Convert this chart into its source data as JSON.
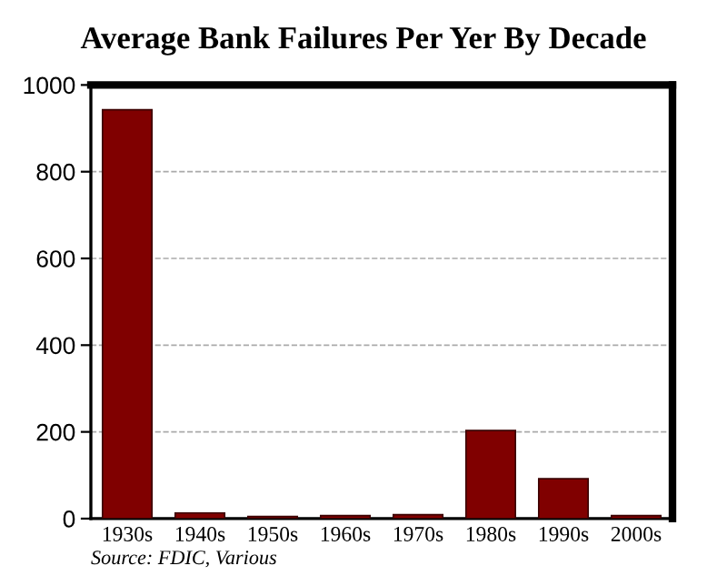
{
  "chart_data": {
    "type": "bar",
    "title": "Average Bank Failures Per Yer By Decade",
    "categories": [
      "1930s",
      "1940s",
      "1950s",
      "1960s",
      "1970s",
      "1980s",
      "1990s",
      "2000s"
    ],
    "values": [
      943,
      13,
      5,
      7,
      9,
      203,
      92,
      7
    ],
    "color": "#800000",
    "ylim": [
      0,
      1000
    ],
    "yticks": [
      0,
      200,
      400,
      600,
      800,
      1000
    ],
    "grid": "y",
    "annotations": [
      "Source: FDIC, Various"
    ]
  }
}
